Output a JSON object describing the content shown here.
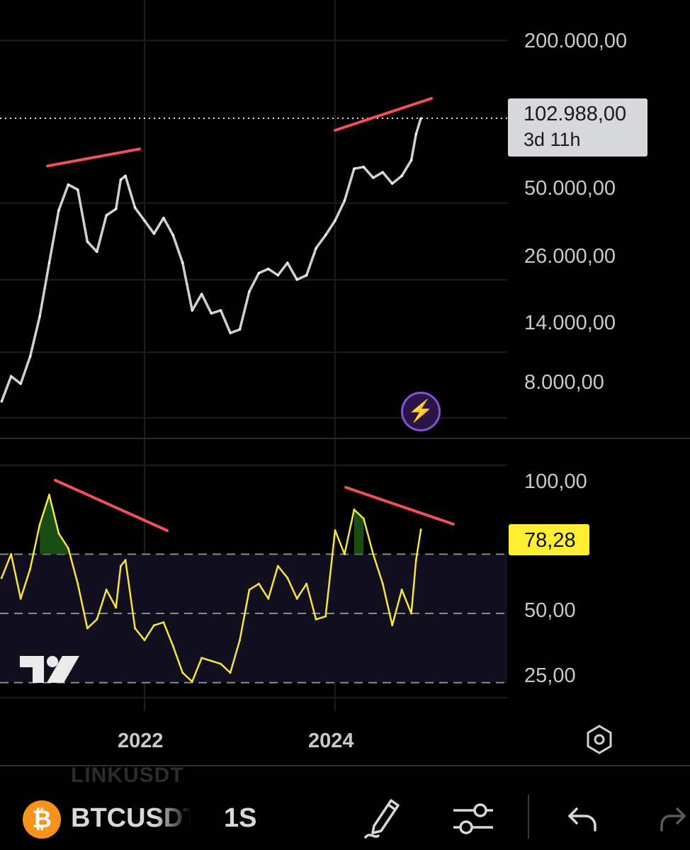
{
  "price_axis": {
    "ticks": [
      "200.000,00",
      "50.000,00",
      "26.000,00",
      "14.000,00",
      "8.000,00"
    ],
    "current_price": "102.988,00",
    "countdown": "3d 11h"
  },
  "rsi_axis": {
    "ticks": [
      "100,00",
      "50,00",
      "25,00"
    ],
    "current_value": "78,28"
  },
  "time_axis": {
    "years": [
      "2022",
      "2024"
    ]
  },
  "toolbar": {
    "symbol": "BTCUSDT",
    "interval": "1S",
    "ghost_symbol": "LINKUSDT",
    "coin_glyph": "₿"
  },
  "icons": {
    "bolt": "⚡",
    "settings": "settings-icon",
    "draw": "pencil-icon",
    "indicators": "sliders-icon",
    "undo": "undo-icon",
    "redo": "redo-icon"
  },
  "colors": {
    "price_line": "#d0d0d0",
    "rsi_line": "#f5e63c",
    "divergence_line": "#f0505a",
    "rsi_band": "#12101e",
    "overbought_fill": "#1f5a16",
    "price_label_bg": "#d6d8dc",
    "rsi_label_bg": "#ffef33"
  },
  "chart_data": [
    {
      "type": "line",
      "title": "",
      "scale": "log",
      "ylim": [
        7000,
        230000
      ],
      "x": [
        2020.5,
        2020.6,
        2020.7,
        2020.8,
        2020.9,
        2021.0,
        2021.1,
        2021.2,
        2021.3,
        2021.4,
        2021.5,
        2021.6,
        2021.7,
        2021.75,
        2021.8,
        2021.9,
        2022.0,
        2022.1,
        2022.2,
        2022.3,
        2022.4,
        2022.5,
        2022.6,
        2022.7,
        2022.8,
        2022.9,
        2023.0,
        2023.1,
        2023.2,
        2023.3,
        2023.4,
        2023.5,
        2023.6,
        2023.7,
        2023.8,
        2023.9,
        2024.0,
        2024.1,
        2024.2,
        2024.3,
        2024.4,
        2024.5,
        2024.6,
        2024.7,
        2024.8,
        2024.85,
        2024.9
      ],
      "y": [
        9200,
        11400,
        10700,
        13500,
        19000,
        30000,
        47000,
        58500,
        56000,
        36000,
        33000,
        45000,
        47500,
        61000,
        63000,
        48000,
        43000,
        38500,
        44000,
        38000,
        30000,
        20000,
        23000,
        19500,
        20000,
        16500,
        17000,
        23500,
        27500,
        28500,
        27000,
        30000,
        26000,
        27000,
        34000,
        38000,
        43000,
        51000,
        67000,
        68000,
        62000,
        65000,
        59000,
        63000,
        72000,
        90000,
        102988
      ]
    },
    {
      "type": "line",
      "title": "",
      "ylim": [
        18,
        104
      ],
      "x": [
        2020.5,
        2020.6,
        2020.7,
        2020.8,
        2020.9,
        2021.0,
        2021.1,
        2021.2,
        2021.3,
        2021.4,
        2021.5,
        2021.6,
        2021.7,
        2021.75,
        2021.8,
        2021.9,
        2022.0,
        2022.1,
        2022.2,
        2022.3,
        2022.4,
        2022.5,
        2022.6,
        2022.7,
        2022.8,
        2022.9,
        2023.0,
        2023.1,
        2023.2,
        2023.3,
        2023.4,
        2023.5,
        2023.6,
        2023.7,
        2023.8,
        2023.9,
        2024.0,
        2024.1,
        2024.2,
        2024.3,
        2024.4,
        2024.5,
        2024.6,
        2024.7,
        2024.8,
        2024.85,
        2024.9
      ],
      "y": [
        62,
        70,
        55,
        65,
        80,
        90,
        77,
        72,
        60,
        45,
        48,
        58,
        52,
        66,
        68,
        45,
        41,
        46,
        47,
        39,
        30,
        27,
        35,
        34,
        33,
        30,
        41,
        58,
        60,
        55,
        66,
        62,
        55,
        60,
        48,
        49,
        78,
        70,
        85,
        82,
        70,
        60,
        46,
        58,
        50,
        68,
        78.28
      ]
    }
  ]
}
